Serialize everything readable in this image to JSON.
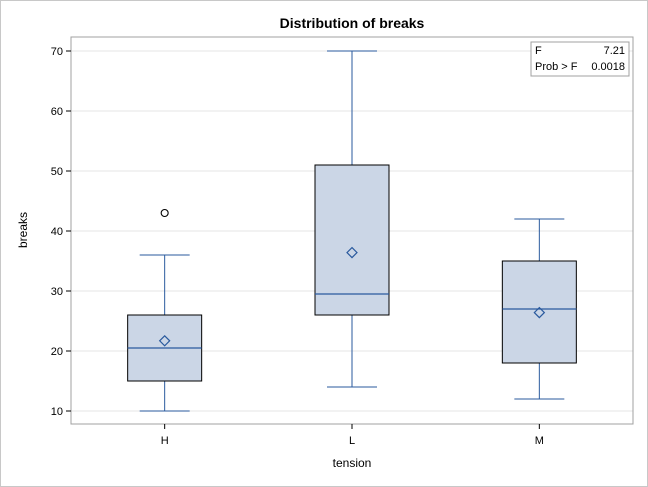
{
  "chart_data": {
    "type": "box",
    "title": "Distribution of breaks",
    "xlabel": "tension",
    "ylabel": "breaks",
    "ylim": [
      8,
      73
    ],
    "yticks": [
      10,
      20,
      30,
      40,
      50,
      60,
      70
    ],
    "categories": [
      "H",
      "L",
      "M"
    ],
    "boxes": [
      {
        "category": "H",
        "whisker_low": 10,
        "q1": 15,
        "median": 20.5,
        "q3": 26,
        "whisker_high": 36,
        "mean": 21.7,
        "outliers": [
          43
        ]
      },
      {
        "category": "L",
        "whisker_low": 14,
        "q1": 26,
        "median": 29.5,
        "q3": 51,
        "whisker_high": 70,
        "mean": 36.4,
        "outliers": []
      },
      {
        "category": "M",
        "whisker_low": 12,
        "q1": 18,
        "median": 27,
        "q3": 35,
        "whisker_high": 42,
        "mean": 26.4,
        "outliers": []
      }
    ],
    "grid": true,
    "stats_inset": {
      "position": "top-right",
      "rows": [
        {
          "label": "F",
          "value": "7.21"
        },
        {
          "label": "Prob > F",
          "value": "0.0018"
        }
      ]
    },
    "colors": {
      "box_fill": "#cbd6e6",
      "box_border": "#000000",
      "lines": "#2a5a9e",
      "grid": "#e4e4e4"
    }
  }
}
